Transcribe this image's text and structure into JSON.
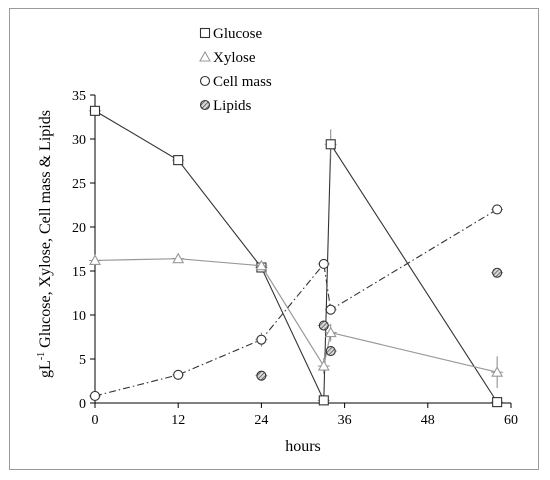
{
  "chart_data": {
    "type": "line",
    "xlabel": "hours",
    "ylabel_main": "gL",
    "ylabel_sup": "-1",
    "ylabel_rest": " Glucose, Xylose, Cell mass & Lipids",
    "xlim": [
      0,
      60
    ],
    "ylim": [
      0,
      35
    ],
    "xticks": [
      0,
      12,
      24,
      36,
      48,
      60
    ],
    "yticks": [
      0,
      5,
      10,
      15,
      20,
      25,
      30,
      35
    ],
    "grid": false,
    "legend_position": "top-center",
    "series": [
      {
        "name": "Glucose",
        "marker": "square",
        "line": "solid",
        "color": "#333333",
        "x": [
          0,
          12,
          24,
          33,
          34,
          58
        ],
        "y": [
          33.2,
          27.6,
          15.4,
          0.3,
          29.4,
          0.1
        ],
        "err": [
          0,
          0,
          0,
          0,
          1.7,
          0
        ]
      },
      {
        "name": "Xylose",
        "marker": "triangle",
        "line": "solid",
        "color": "#999999",
        "x": [
          0,
          12,
          24,
          33,
          34,
          58
        ],
        "y": [
          16.2,
          16.4,
          15.6,
          4.2,
          8.0,
          3.5
        ],
        "err": [
          0,
          0,
          0,
          0.9,
          1.0,
          1.8
        ]
      },
      {
        "name": "Cell mass",
        "marker": "circle",
        "line": "dashdot",
        "color": "#333333",
        "x": [
          0,
          12,
          24,
          33,
          34,
          58
        ],
        "y": [
          0.8,
          3.2,
          7.2,
          15.8,
          10.6,
          22.0
        ],
        "err": [
          0,
          0,
          0.8,
          0,
          0,
          0
        ]
      },
      {
        "name": "Lipids",
        "marker": "hatched-circle",
        "line": "none",
        "color": "#555555",
        "x": [
          24,
          33,
          34,
          58
        ],
        "y": [
          3.1,
          8.8,
          5.9,
          14.8
        ],
        "err": [
          0,
          0,
          0,
          0
        ]
      }
    ]
  }
}
